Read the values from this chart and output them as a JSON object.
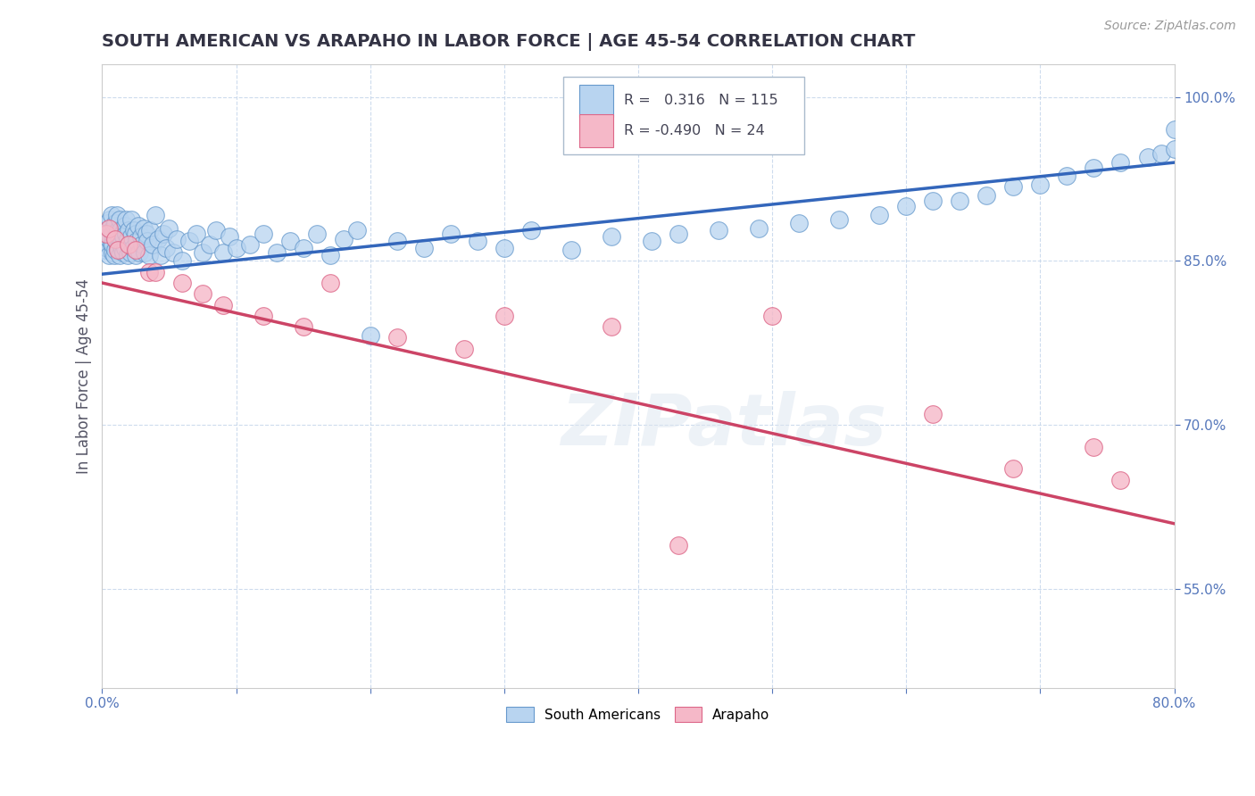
{
  "title": "SOUTH AMERICAN VS ARAPAHO IN LABOR FORCE | AGE 45-54 CORRELATION CHART",
  "source_text": "Source: ZipAtlas.com",
  "ylabel": "In Labor Force | Age 45-54",
  "xlim": [
    0.0,
    0.8
  ],
  "ylim": [
    0.46,
    1.03
  ],
  "xticks": [
    0.0,
    0.1,
    0.2,
    0.3,
    0.4,
    0.5,
    0.6,
    0.7,
    0.8
  ],
  "xticklabels": [
    "0.0%",
    "",
    "",
    "",
    "",
    "",
    "",
    "",
    "80.0%"
  ],
  "ytick_positions": [
    0.55,
    0.7,
    0.85,
    1.0
  ],
  "yticklabels": [
    "55.0%",
    "70.0%",
    "85.0%",
    "100.0%"
  ],
  "blue_R": 0.316,
  "blue_N": 115,
  "pink_R": -0.49,
  "pink_N": 24,
  "blue_color": "#b8d4f0",
  "pink_color": "#f5b8c8",
  "blue_edge_color": "#6699cc",
  "pink_edge_color": "#dd6688",
  "blue_line_color": "#3366bb",
  "pink_line_color": "#cc4466",
  "legend_label_blue": "South Americans",
  "legend_label_pink": "Arapaho",
  "watermark": "ZIPatlas",
  "blue_trend_x": [
    0.0,
    0.8
  ],
  "blue_trend_y": [
    0.838,
    0.94
  ],
  "pink_trend_x": [
    0.0,
    0.8
  ],
  "pink_trend_y": [
    0.83,
    0.61
  ],
  "blue_x": [
    0.002,
    0.003,
    0.004,
    0.004,
    0.005,
    0.005,
    0.005,
    0.006,
    0.006,
    0.007,
    0.007,
    0.007,
    0.008,
    0.008,
    0.008,
    0.009,
    0.009,
    0.01,
    0.01,
    0.01,
    0.011,
    0.011,
    0.012,
    0.012,
    0.013,
    0.013,
    0.013,
    0.014,
    0.014,
    0.015,
    0.015,
    0.016,
    0.016,
    0.017,
    0.017,
    0.018,
    0.018,
    0.019,
    0.019,
    0.02,
    0.02,
    0.021,
    0.022,
    0.022,
    0.023,
    0.024,
    0.025,
    0.025,
    0.026,
    0.027,
    0.028,
    0.029,
    0.03,
    0.031,
    0.032,
    0.033,
    0.034,
    0.035,
    0.036,
    0.038,
    0.04,
    0.042,
    0.044,
    0.046,
    0.048,
    0.05,
    0.053,
    0.056,
    0.06,
    0.065,
    0.07,
    0.075,
    0.08,
    0.085,
    0.09,
    0.095,
    0.1,
    0.11,
    0.12,
    0.13,
    0.14,
    0.15,
    0.16,
    0.17,
    0.18,
    0.19,
    0.2,
    0.22,
    0.24,
    0.26,
    0.28,
    0.3,
    0.32,
    0.35,
    0.38,
    0.41,
    0.43,
    0.46,
    0.49,
    0.52,
    0.55,
    0.58,
    0.6,
    0.62,
    0.64,
    0.66,
    0.68,
    0.7,
    0.72,
    0.74,
    0.76,
    0.78,
    0.79,
    0.8,
    0.8
  ],
  "blue_y": [
    0.86,
    0.875,
    0.862,
    0.885,
    0.87,
    0.88,
    0.855,
    0.872,
    0.888,
    0.865,
    0.878,
    0.892,
    0.858,
    0.875,
    0.865,
    0.882,
    0.855,
    0.87,
    0.885,
    0.86,
    0.875,
    0.892,
    0.862,
    0.878,
    0.855,
    0.87,
    0.888,
    0.865,
    0.878,
    0.86,
    0.875,
    0.858,
    0.872,
    0.882,
    0.862,
    0.875,
    0.888,
    0.855,
    0.87,
    0.865,
    0.878,
    0.858,
    0.872,
    0.888,
    0.862,
    0.878,
    0.855,
    0.875,
    0.868,
    0.882,
    0.858,
    0.872,
    0.865,
    0.88,
    0.858,
    0.875,
    0.868,
    0.855,
    0.878,
    0.865,
    0.892,
    0.87,
    0.855,
    0.875,
    0.862,
    0.88,
    0.858,
    0.87,
    0.85,
    0.868,
    0.875,
    0.858,
    0.865,
    0.878,
    0.858,
    0.872,
    0.862,
    0.865,
    0.875,
    0.858,
    0.868,
    0.862,
    0.875,
    0.855,
    0.87,
    0.878,
    0.782,
    0.868,
    0.862,
    0.875,
    0.868,
    0.862,
    0.878,
    0.86,
    0.872,
    0.868,
    0.875,
    0.878,
    0.88,
    0.885,
    0.888,
    0.892,
    0.9,
    0.905,
    0.905,
    0.91,
    0.918,
    0.92,
    0.928,
    0.935,
    0.94,
    0.945,
    0.948,
    0.952,
    0.97
  ],
  "pink_x": [
    0.003,
    0.005,
    0.01,
    0.012,
    0.02,
    0.025,
    0.035,
    0.04,
    0.06,
    0.075,
    0.09,
    0.12,
    0.15,
    0.17,
    0.22,
    0.27,
    0.3,
    0.38,
    0.43,
    0.5,
    0.62,
    0.68,
    0.74,
    0.76
  ],
  "pink_y": [
    0.875,
    0.88,
    0.87,
    0.86,
    0.865,
    0.86,
    0.84,
    0.84,
    0.83,
    0.82,
    0.81,
    0.8,
    0.79,
    0.83,
    0.78,
    0.77,
    0.8,
    0.79,
    0.59,
    0.8,
    0.71,
    0.66,
    0.68,
    0.65
  ]
}
